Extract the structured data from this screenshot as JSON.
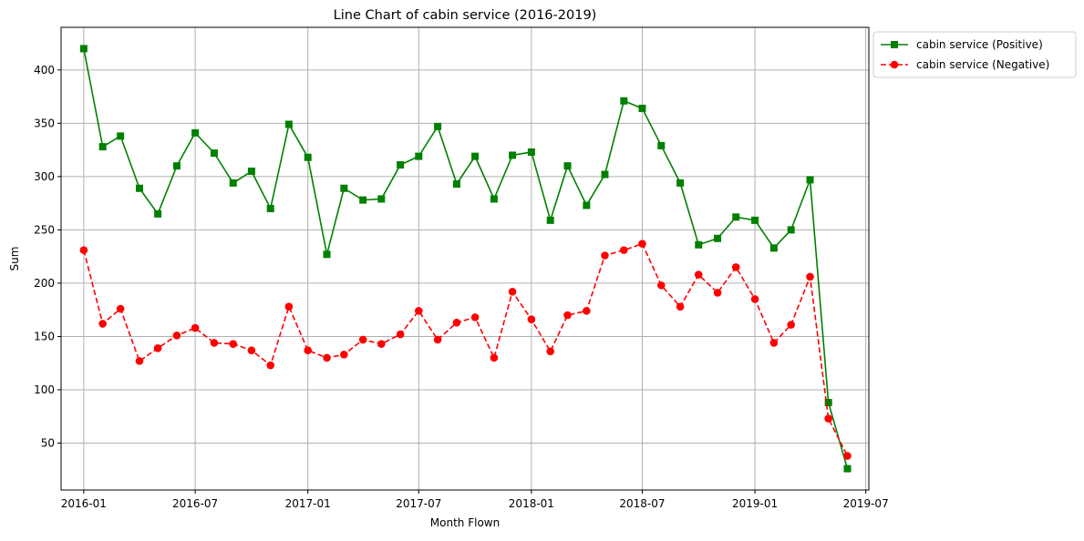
{
  "chart_data": {
    "type": "line",
    "title": "Line Chart of cabin service (2016-2019)",
    "xlabel": "Month Flown",
    "ylabel": "Sum",
    "x": [
      "2016-01",
      "2016-02",
      "2016-03",
      "2016-04",
      "2016-05",
      "2016-06",
      "2016-07",
      "2016-08",
      "2016-09",
      "2016-10",
      "2016-11",
      "2016-12",
      "2017-01",
      "2017-02",
      "2017-03",
      "2017-04",
      "2017-05",
      "2017-06",
      "2017-07",
      "2017-08",
      "2017-09",
      "2017-10",
      "2017-11",
      "2017-12",
      "2018-01",
      "2018-02",
      "2018-03",
      "2018-04",
      "2018-05",
      "2018-06",
      "2018-07",
      "2018-08",
      "2018-09",
      "2018-10",
      "2018-11",
      "2018-12",
      "2019-01",
      "2019-02",
      "2019-03",
      "2019-04",
      "2019-05",
      "2019-06"
    ],
    "x_ticks": [
      "2016-01",
      "2016-07",
      "2017-01",
      "2017-07",
      "2018-01",
      "2018-07",
      "2019-01",
      "2019-07"
    ],
    "y_ticks": [
      50,
      100,
      150,
      200,
      250,
      300,
      350,
      400
    ],
    "xlim": [
      "2015-11-25",
      "2019-07-06"
    ],
    "ylim": [
      6,
      440
    ],
    "grid": true,
    "legend_position": "outside upper-right",
    "series": [
      {
        "name": "cabin service (Positive)",
        "color": "#008000",
        "line_style": "solid",
        "marker": "square",
        "values": [
          420,
          328,
          338,
          289,
          265,
          310,
          341,
          322,
          294,
          305,
          270,
          349,
          318,
          227,
          289,
          278,
          279,
          311,
          319,
          347,
          293,
          319,
          279,
          320,
          323,
          259,
          310,
          273,
          302,
          371,
          364,
          329,
          294,
          236,
          242,
          262,
          259,
          233,
          250,
          297,
          88,
          26
        ]
      },
      {
        "name": "cabin service (Negative)",
        "color": "#ff0000",
        "line_style": "dashed",
        "marker": "circle",
        "values": [
          231,
          162,
          176,
          127,
          139,
          151,
          158,
          144,
          143,
          137,
          123,
          178,
          137,
          130,
          133,
          147,
          143,
          152,
          174,
          147,
          163,
          168,
          130,
          192,
          166,
          136,
          170,
          174,
          226,
          231,
          237,
          198,
          178,
          208,
          191,
          215,
          185,
          144,
          161,
          206,
          73,
          38
        ]
      }
    ]
  }
}
